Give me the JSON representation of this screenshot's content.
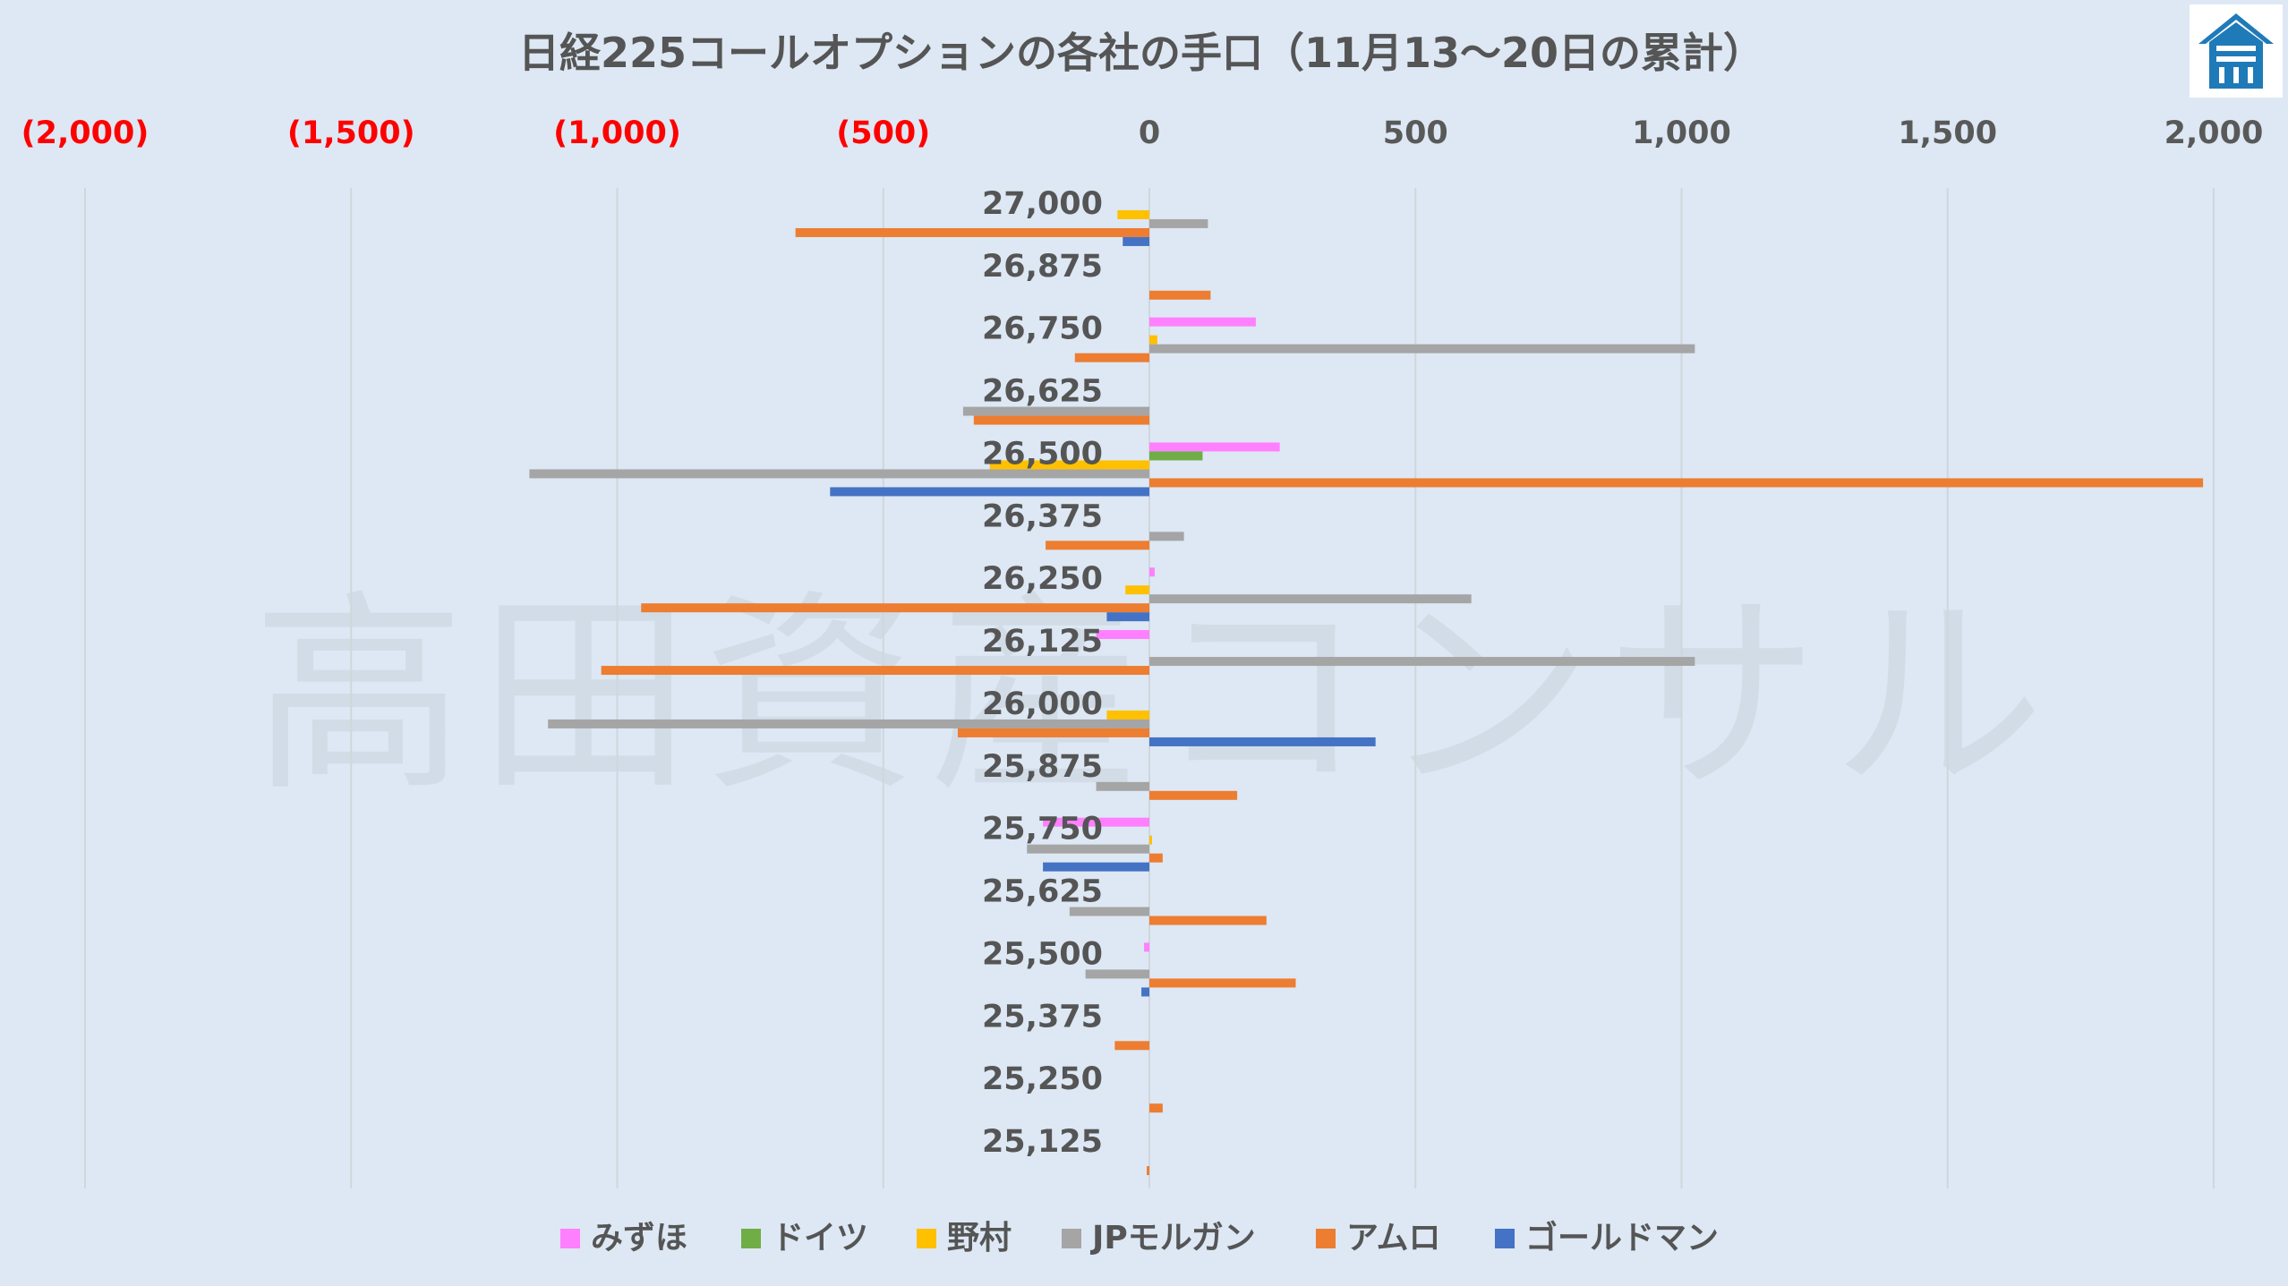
{
  "watermark": "高田資産コンサル",
  "logo_icon": "house-logo-icon",
  "chart_data": {
    "type": "bar",
    "orientation": "horizontal",
    "title": "日経225コールオプションの各社の手口（11月13〜20日の累計）",
    "x_ticks": [
      {
        "value": -2000,
        "label": "(2,000)",
        "color": "#ff0000"
      },
      {
        "value": -1500,
        "label": "(1,500)",
        "color": "#ff0000"
      },
      {
        "value": -1000,
        "label": "(1,000)",
        "color": "#ff0000"
      },
      {
        "value": -500,
        "label": "(500)",
        "color": "#ff0000"
      },
      {
        "value": 0,
        "label": "0",
        "color": "#595959"
      },
      {
        "value": 500,
        "label": "500",
        "color": "#595959"
      },
      {
        "value": 1000,
        "label": "1,000",
        "color": "#595959"
      },
      {
        "value": 1500,
        "label": "1,500",
        "color": "#595959"
      },
      {
        "value": 2000,
        "label": "2,000",
        "color": "#595959"
      }
    ],
    "xlim": [
      -2000,
      2000
    ],
    "grid": "vertical",
    "legend_position": "bottom",
    "categories": [
      "27,000",
      "26,875",
      "26,750",
      "26,625",
      "26,500",
      "26,375",
      "26,250",
      "26,125",
      "26,000",
      "25,875",
      "25,750",
      "25,625",
      "25,500",
      "25,375",
      "25,250",
      "25,125"
    ],
    "series": [
      {
        "name": "みずほ",
        "color": "#ff80ff",
        "values": [
          0,
          0,
          200,
          0,
          245,
          0,
          10,
          -100,
          0,
          0,
          -200,
          0,
          -10,
          0,
          0,
          0
        ]
      },
      {
        "name": "ドイツ",
        "color": "#70ad47",
        "values": [
          0,
          0,
          0,
          0,
          100,
          0,
          0,
          0,
          0,
          0,
          0,
          0,
          0,
          0,
          0,
          0
        ]
      },
      {
        "name": "野村",
        "color": "#ffc000",
        "values": [
          -60,
          0,
          15,
          0,
          -300,
          0,
          -45,
          0,
          -80,
          0,
          5,
          0,
          0,
          0,
          0,
          0
        ]
      },
      {
        "name": "JPモルガン",
        "color": "#a5a5a5",
        "values": [
          110,
          0,
          1025,
          -350,
          -1165,
          65,
          605,
          1025,
          -1130,
          -100,
          -230,
          -150,
          -120,
          0,
          0,
          0
        ]
      },
      {
        "name": "アムロ",
        "color": "#ed7d31",
        "values": [
          -665,
          115,
          -140,
          -330,
          1980,
          -195,
          -955,
          -1030,
          -360,
          165,
          25,
          220,
          275,
          -65,
          25,
          -5
        ]
      },
      {
        "name": "ゴールドマン",
        "color": "#4472c4",
        "values": [
          -50,
          0,
          0,
          0,
          -600,
          0,
          -80,
          0,
          425,
          0,
          -200,
          0,
          -15,
          0,
          0,
          0
        ]
      }
    ]
  }
}
